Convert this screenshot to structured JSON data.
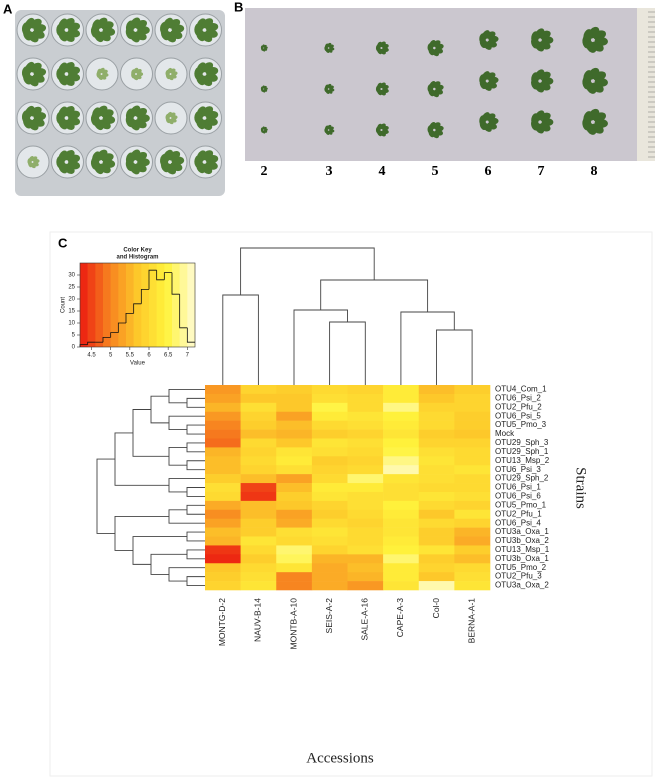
{
  "panels": {
    "a": "A",
    "b": "B",
    "c": "C"
  },
  "panel_b": {
    "labels": [
      2,
      3,
      4,
      5,
      6,
      7,
      8
    ]
  },
  "chart_data": {
    "type": "heatmap",
    "x_label": "Accessions",
    "y_label": "Strains",
    "columns": [
      "MONTG-D-2",
      "NAUV-B-14",
      "MONTB-A-10",
      "SEIS-A-2",
      "SALE-A-16",
      "CAPE-A-3",
      "Col-0",
      "BERNA-A-1"
    ],
    "rows": [
      "OTU4_Com_1",
      "OTU6_Psi_2",
      "OTU2_Pfu_2",
      "OTU6_Psi_5",
      "OTU5_Pmo_3",
      "Mock",
      "OTU29_Sph_3",
      "OTU29_Sph_1",
      "OTU13_Msp_2",
      "OTU6_Psi_3",
      "OTU29_Sph_2",
      "OTU6_Psi_1",
      "OTU6_Psi_6",
      "OTU5_Pmo_1",
      "OTU2_Pfu_1",
      "OTU6_Psi_4",
      "OTU3a_Oxa_1",
      "OTU3b_Oxa_2",
      "OTU13_Msp_1",
      "OTU3b_Oxa_1",
      "OTU5_Pmo_2",
      "OTU2_Pfu_3",
      "OTU3a_Oxa_2"
    ],
    "values": [
      [
        5.2,
        5.9,
        5.8,
        6.0,
        5.9,
        6.3,
        5.6,
        5.8
      ],
      [
        5.3,
        5.7,
        5.7,
        6.1,
        6.0,
        6.3,
        5.7,
        5.9
      ],
      [
        5.5,
        6.1,
        5.7,
        6.5,
        6.0,
        6.8,
        5.9,
        5.9
      ],
      [
        5.2,
        5.9,
        5.3,
        6.3,
        6.2,
        6.4,
        6.0,
        5.8
      ],
      [
        5.0,
        5.8,
        5.6,
        6.0,
        6.1,
        6.3,
        6.0,
        5.8
      ],
      [
        4.9,
        5.6,
        5.5,
        5.8,
        5.9,
        6.2,
        5.8,
        5.7
      ],
      [
        4.8,
        6.0,
        5.7,
        6.2,
        6.1,
        6.4,
        5.9,
        5.9
      ],
      [
        5.5,
        5.9,
        6.2,
        6.1,
        6.0,
        6.5,
        6.1,
        6.0
      ],
      [
        5.6,
        6.0,
        6.3,
        5.8,
        5.9,
        6.8,
        6.2,
        6.0
      ],
      [
        5.6,
        5.9,
        6.1,
        5.9,
        6.0,
        7.0,
        6.1,
        6.2
      ],
      [
        5.8,
        5.6,
        5.3,
        6.0,
        6.7,
        6.2,
        6.1,
        6.0
      ],
      [
        6.1,
        4.5,
        5.6,
        6.3,
        6.3,
        6.1,
        6.0,
        6.0
      ],
      [
        6.0,
        4.4,
        5.8,
        6.2,
        6.1,
        6.1,
        6.2,
        6.1
      ],
      [
        5.4,
        5.6,
        5.7,
        5.9,
        6.1,
        6.4,
        6.0,
        5.9
      ],
      [
        5.1,
        5.6,
        5.3,
        5.8,
        6.0,
        6.3,
        5.7,
        6.2
      ],
      [
        5.3,
        5.8,
        5.4,
        6.0,
        5.9,
        6.2,
        6.0,
        5.9
      ],
      [
        5.6,
        5.8,
        6.1,
        6.2,
        6.0,
        6.2,
        5.8,
        5.5
      ],
      [
        5.5,
        6.2,
        6.0,
        6.1,
        6.0,
        6.3,
        5.8,
        5.4
      ],
      [
        4.4,
        6.0,
        6.7,
        5.9,
        6.1,
        6.4,
        6.2,
        5.8
      ],
      [
        4.3,
        5.8,
        6.6,
        5.5,
        5.5,
        6.7,
        5.8,
        5.6
      ],
      [
        5.7,
        6.0,
        6.2,
        5.4,
        5.6,
        6.3,
        5.9,
        6.0
      ],
      [
        5.8,
        6.1,
        5.0,
        5.4,
        5.5,
        6.3,
        5.7,
        6.1
      ],
      [
        5.9,
        6.2,
        5.0,
        5.4,
        5.2,
        6.2,
        7.0,
        6.2
      ]
    ],
    "color_scale": {
      "title": [
        "Color Key",
        "and Histogram"
      ],
      "x_label": "Value",
      "y_label": "Count",
      "colors": [
        "#ec1b10",
        "#f7801f",
        "#fdc82a",
        "#fff43c",
        "#fffbd6"
      ],
      "xlim": [
        4.2,
        7.2
      ],
      "xticks": [
        4.5,
        5,
        5.5,
        6,
        6.5,
        7
      ],
      "ylim": [
        0,
        35
      ],
      "yticks": [
        0,
        5,
        10,
        15,
        20,
        25,
        30
      ],
      "bins": [
        4.2,
        4.4,
        4.6,
        4.8,
        5.0,
        5.2,
        5.4,
        5.6,
        5.8,
        6.0,
        6.2,
        6.4,
        6.6,
        6.8,
        7.0,
        7.2
      ],
      "counts": [
        1,
        2,
        2,
        4,
        6,
        10,
        14,
        18,
        24,
        32,
        28,
        31,
        22,
        8,
        2
      ]
    }
  }
}
